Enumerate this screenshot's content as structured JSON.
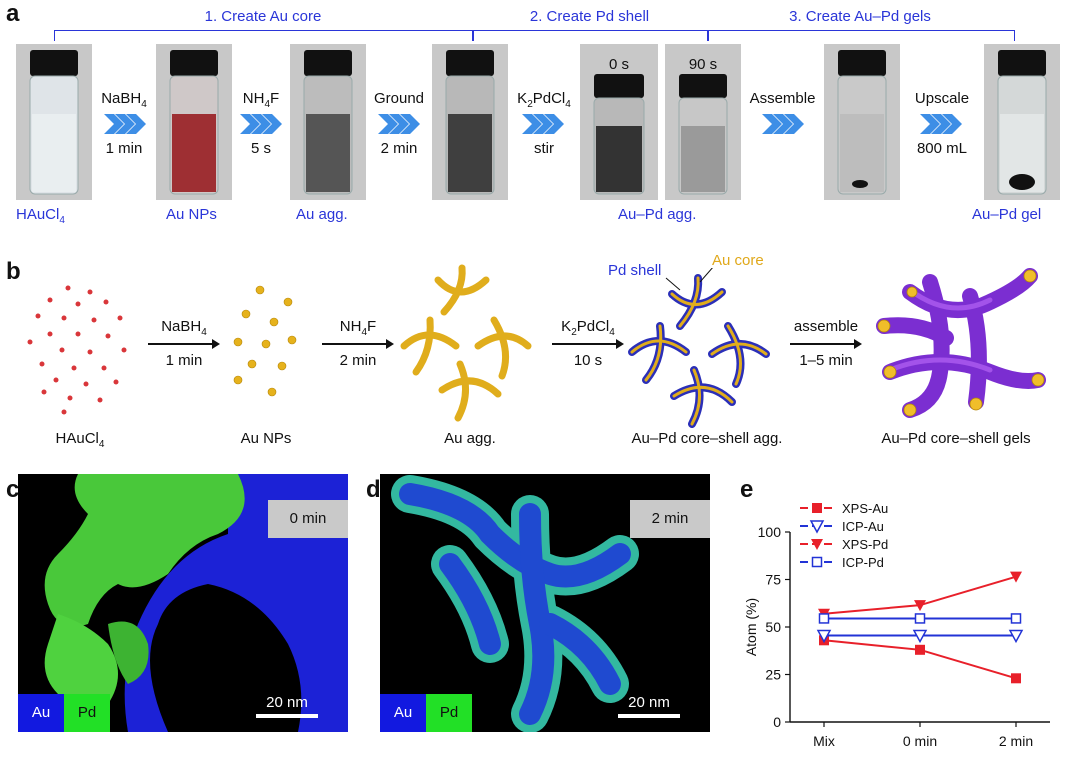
{
  "panels": {
    "a": "a",
    "b": "b",
    "c": "c",
    "d": "d",
    "e": "e"
  },
  "panel_a": {
    "stages": [
      "1. Create Au core",
      "2. Create Pd shell",
      "3. Create Au–Pd gels"
    ],
    "steps": [
      {
        "top": "NaBH",
        "top_sub": "4",
        "bottom": "1 min"
      },
      {
        "top": "NH",
        "top_sub": "4",
        "top_tail": "F",
        "bottom": "5 s"
      },
      {
        "top": "Ground",
        "bottom": "2 min"
      },
      {
        "top": "K",
        "top_sub": "2",
        "top_tail": "PdCl",
        "top_sub2": "4",
        "bottom": "stir"
      },
      {
        "top": "Assemble",
        "bottom": ""
      },
      {
        "top": "Upscale",
        "bottom": "800 mL"
      }
    ],
    "time_labels": [
      "0 s",
      "90 s"
    ],
    "captions": {
      "hauc": "HAuCl",
      "hauc_sub": "4",
      "au_nps": "Au NPs",
      "au_agg": "Au agg.",
      "aupd_agg": "Au–Pd agg.",
      "aupd_gel": "Au–Pd gel"
    }
  },
  "panel_b": {
    "labels": {
      "hauc": "HAuCl",
      "hauc_sub": "4",
      "au_nps": "Au NPs",
      "au_agg": "Au agg.",
      "core_shell_agg": "Au–Pd core–shell agg.",
      "gels": "Au–Pd core–shell gels"
    },
    "arrows": [
      {
        "top": "NaBH",
        "top_sub": "4",
        "bottom": "1 min"
      },
      {
        "top": "NH",
        "top_sub": "4",
        "top_tail": "F",
        "bottom": "2 min"
      },
      {
        "top": "K",
        "top_sub": "2",
        "top_tail": "PdCl",
        "top_sub2": "4",
        "bottom": "10 s"
      },
      {
        "top": "assemble",
        "bottom": "1–5 min"
      }
    ],
    "annotations": {
      "pd_shell": "Pd shell",
      "au_core": "Au core"
    }
  },
  "panel_c": {
    "time": "0 min",
    "legend_au": "Au",
    "legend_pd": "Pd",
    "scale": "20 nm"
  },
  "panel_d": {
    "time": "2 min",
    "legend_au": "Au",
    "legend_pd": "Pd",
    "scale": "20 nm"
  },
  "chart_data": {
    "type": "line",
    "categories": [
      "Mix",
      "0 min",
      "2 min"
    ],
    "ylabel": "Atom (%)",
    "ylim": [
      0,
      100
    ],
    "yticks": [
      0,
      25,
      50,
      75,
      100
    ],
    "legend_position": "top-left",
    "series": [
      {
        "name": "XPS-Au",
        "values": [
          43,
          38,
          23
        ],
        "color": "#e8202a",
        "marker": "square-filled"
      },
      {
        "name": "ICP-Au",
        "values": [
          45.5,
          45.5,
          45.5
        ],
        "color": "#2233d6",
        "marker": "triangle-down-open"
      },
      {
        "name": "XPS-Pd",
        "values": [
          57,
          61.5,
          76.5
        ],
        "color": "#e8202a",
        "marker": "triangle-down-filled"
      },
      {
        "name": "ICP-Pd",
        "values": [
          54.5,
          54.5,
          54.5
        ],
        "color": "#2233d6",
        "marker": "square-open"
      }
    ]
  }
}
